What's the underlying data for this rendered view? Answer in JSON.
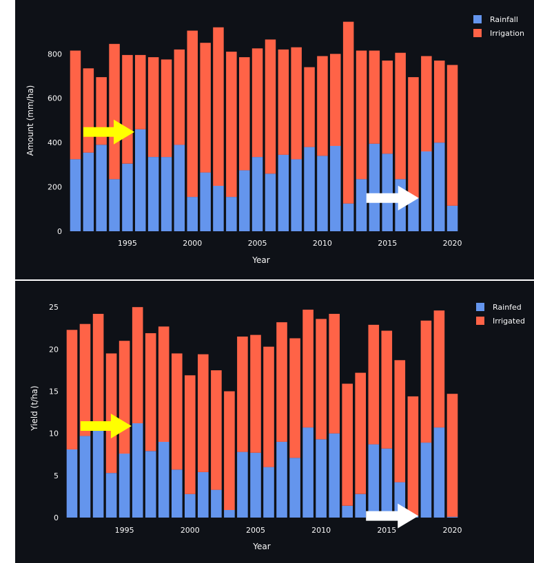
{
  "colors": {
    "background": "#0e1117",
    "series_a": "#6495ed",
    "series_b": "#ff6347",
    "text": "#fafafa",
    "arrow_yellow": "#ffff00",
    "arrow_white": "#ffffff"
  },
  "chart_data": [
    {
      "type": "bar",
      "stacked": true,
      "xlabel": "Year",
      "ylabel": "Amount (mm/ha)",
      "ylim": [
        0,
        950
      ],
      "yticks": [
        0,
        200,
        400,
        600,
        800
      ],
      "xticks": [
        1995,
        2000,
        2005,
        2010,
        2015,
        2020
      ],
      "legend_position": "top-right",
      "x": [
        1991,
        1992,
        1993,
        1994,
        1995,
        1996,
        1997,
        1998,
        1999,
        2000,
        2001,
        2002,
        2003,
        2004,
        2005,
        2006,
        2007,
        2008,
        2009,
        2010,
        2011,
        2012,
        2013,
        2014,
        2015,
        2016,
        2017,
        2018,
        2019,
        2020
      ],
      "series": [
        {
          "name": "Rainfall",
          "values": [
            325,
            355,
            390,
            235,
            305,
            460,
            335,
            335,
            390,
            155,
            265,
            205,
            155,
            275,
            335,
            260,
            345,
            325,
            380,
            340,
            385,
            125,
            235,
            395,
            350,
            235,
            150,
            360,
            400,
            115
          ]
        },
        {
          "name": "Irrigation",
          "values": [
            490,
            380,
            305,
            610,
            490,
            335,
            450,
            440,
            430,
            750,
            585,
            715,
            655,
            510,
            490,
            605,
            475,
            505,
            360,
            450,
            415,
            820,
            580,
            420,
            420,
            570,
            545,
            430,
            370,
            635
          ]
        }
      ],
      "annotations": [
        {
          "type": "arrow",
          "color": "yellow",
          "points_to": 1996,
          "at_value": 460
        },
        {
          "type": "arrow",
          "color": "white",
          "points_to": 2017,
          "at_value": 150
        }
      ]
    },
    {
      "type": "bar",
      "stacked": true,
      "xlabel": "Year",
      "ylabel": "Yield (t/ha)",
      "ylim": [
        0,
        26
      ],
      "yticks": [
        0,
        5,
        10,
        15,
        20,
        25
      ],
      "xticks": [
        1995,
        2000,
        2005,
        2010,
        2015,
        2020
      ],
      "legend_position": "top-right",
      "x": [
        1991,
        1992,
        1993,
        1994,
        1995,
        1996,
        1997,
        1998,
        1999,
        2000,
        2001,
        2002,
        2003,
        2004,
        2005,
        2006,
        2007,
        2008,
        2009,
        2010,
        2011,
        2012,
        2013,
        2014,
        2015,
        2016,
        2017,
        2018,
        2019,
        2020
      ],
      "series": [
        {
          "name": "Rainfed",
          "values": [
            8.1,
            9.7,
            10.3,
            5.3,
            7.6,
            11.2,
            7.9,
            9.0,
            5.7,
            2.8,
            5.4,
            3.3,
            0.9,
            7.8,
            7.7,
            6.0,
            9.0,
            7.1,
            10.7,
            9.3,
            10.0,
            1.4,
            2.8,
            8.7,
            8.2,
            4.2,
            0.2,
            8.9,
            10.7,
            0.1
          ]
        },
        {
          "name": "Irrigated",
          "values": [
            14.2,
            13.3,
            13.9,
            14.2,
            13.4,
            13.8,
            14.0,
            13.7,
            13.8,
            14.1,
            14.0,
            14.2,
            14.1,
            13.7,
            14.0,
            14.3,
            14.2,
            14.2,
            14.0,
            14.3,
            14.2,
            14.5,
            14.4,
            14.2,
            14.0,
            14.5,
            14.2,
            14.5,
            13.9,
            14.6
          ]
        }
      ],
      "annotations": [
        {
          "type": "arrow",
          "color": "yellow",
          "points_to": 1996,
          "at_value": 11.2
        },
        {
          "type": "arrow",
          "color": "white",
          "points_to": 2017,
          "at_value": 0.2
        }
      ]
    }
  ]
}
